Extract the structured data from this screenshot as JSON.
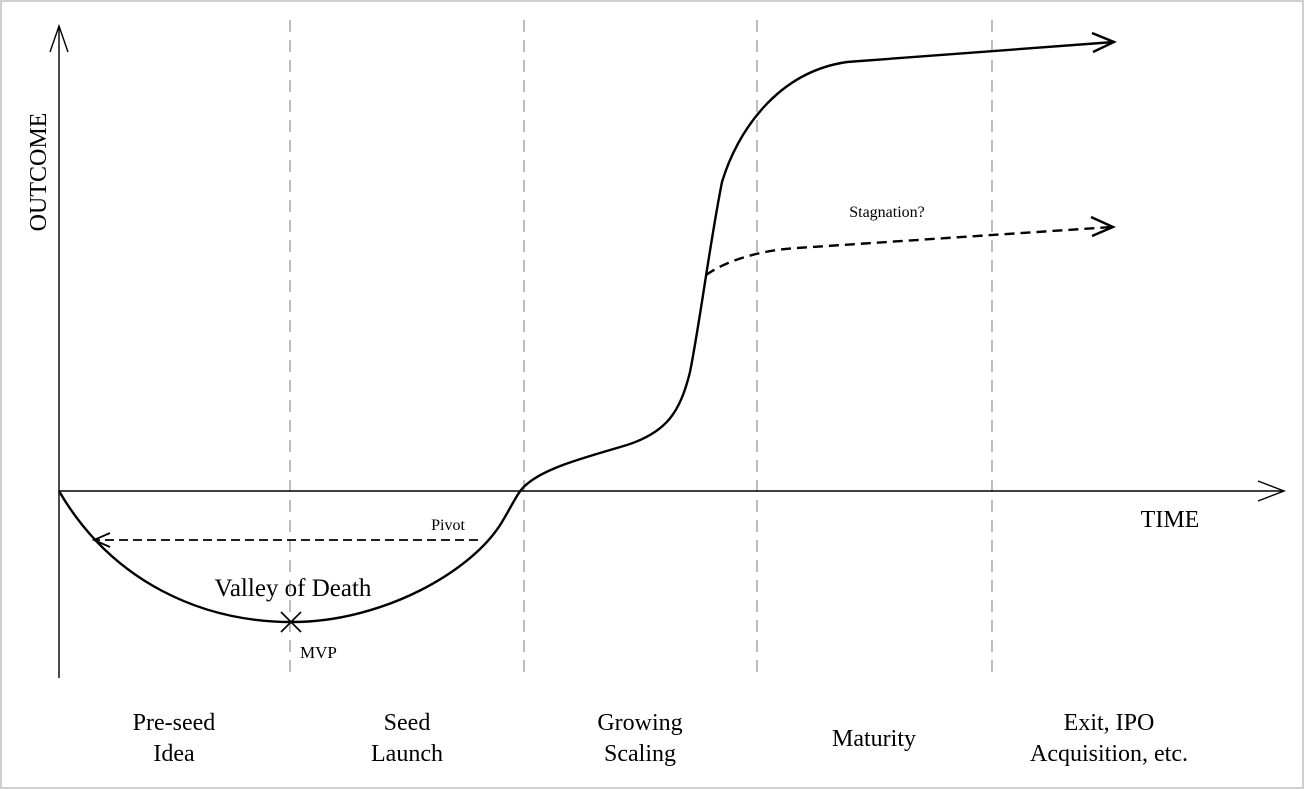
{
  "axes": {
    "y_label": "OUTCOME",
    "x_label": "TIME"
  },
  "annotations": {
    "valley": "Valley of Death",
    "mvp": "MVP",
    "pivot": "Pivot",
    "stagnation": "Stagnation?"
  },
  "stages": [
    {
      "line1": "Pre-seed",
      "line2": "Idea"
    },
    {
      "line1": "Seed",
      "line2": "Launch"
    },
    {
      "line1": "Growing",
      "line2": "Scaling"
    },
    {
      "line1": "Maturity",
      "line2": ""
    },
    {
      "line1": "Exit, IPO",
      "line2": "Acquisition, etc."
    }
  ],
  "colors": {
    "line": "#000000",
    "divider": "#9a9a9a",
    "background": "#ffffff"
  }
}
